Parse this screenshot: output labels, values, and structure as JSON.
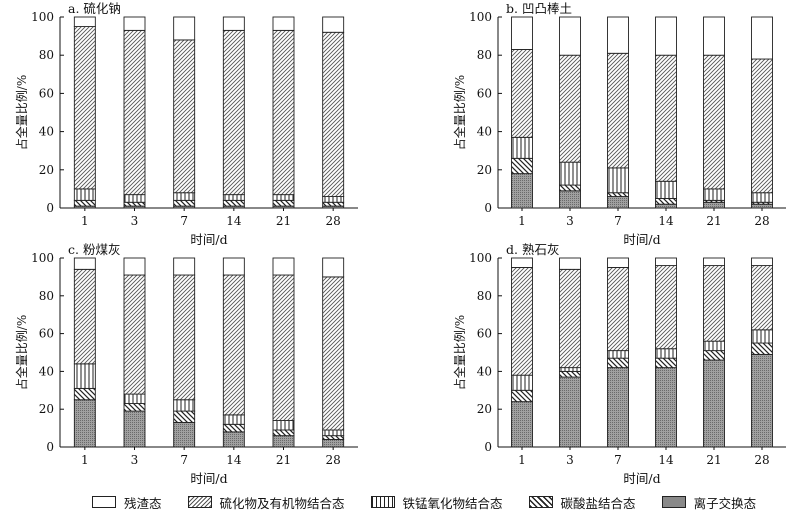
{
  "chart_data": [
    {
      "type": "bar",
      "title": "a. 硫化钠",
      "xlabel": "时间/d",
      "ylabel": "占全量比例/%",
      "ylim": [
        0,
        100
      ],
      "yticks": [
        0,
        20,
        40,
        60,
        80,
        100
      ],
      "categories": [
        "1",
        "3",
        "7",
        "14",
        "21",
        "28"
      ],
      "series": [
        {
          "name": "离子交换态",
          "values": [
            1,
            1,
            1,
            1,
            1,
            1
          ]
        },
        {
          "name": "碳酸盐结合态",
          "values": [
            3,
            2,
            3,
            3,
            3,
            2
          ]
        },
        {
          "name": "铁锰氧化物结合态",
          "values": [
            6,
            4,
            4,
            3,
            3,
            3
          ]
        },
        {
          "name": "硫化物及有机物结合态",
          "values": [
            85,
            86,
            80,
            86,
            86,
            86
          ]
        },
        {
          "name": "残渣态",
          "values": [
            5,
            7,
            12,
            7,
            7,
            8
          ]
        }
      ]
    },
    {
      "type": "bar",
      "title": "b. 凹凸棒土",
      "xlabel": "时间/d",
      "ylabel": "占全量比例/%",
      "ylim": [
        0,
        100
      ],
      "yticks": [
        0,
        20,
        40,
        60,
        80,
        100
      ],
      "categories": [
        "1",
        "3",
        "7",
        "14",
        "21",
        "28"
      ],
      "series": [
        {
          "name": "离子交换态",
          "values": [
            18,
            9,
            6,
            2,
            3,
            2
          ]
        },
        {
          "name": "碳酸盐结合态",
          "values": [
            8,
            3,
            2,
            3,
            1,
            1
          ]
        },
        {
          "name": "铁锰氧化物结合态",
          "values": [
            11,
            12,
            13,
            9,
            6,
            5
          ]
        },
        {
          "name": "硫化物及有机物结合态",
          "values": [
            46,
            56,
            60,
            66,
            70,
            70
          ]
        },
        {
          "name": "残渣态",
          "values": [
            17,
            20,
            19,
            20,
            20,
            22
          ]
        }
      ]
    },
    {
      "type": "bar",
      "title": "c. 粉煤灰",
      "xlabel": "时间/d",
      "ylabel": "占全量比例/%",
      "ylim": [
        0,
        100
      ],
      "yticks": [
        0,
        20,
        40,
        60,
        80,
        100
      ],
      "categories": [
        "1",
        "3",
        "7",
        "14",
        "21",
        "28"
      ],
      "series": [
        {
          "name": "离子交换态",
          "values": [
            25,
            19,
            13,
            8,
            6,
            4
          ]
        },
        {
          "name": "碳酸盐结合态",
          "values": [
            6,
            4,
            6,
            4,
            3,
            2
          ]
        },
        {
          "name": "铁锰氧化物结合态",
          "values": [
            13,
            5,
            6,
            5,
            5,
            3
          ]
        },
        {
          "name": "硫化物及有机物结合态",
          "values": [
            50,
            63,
            66,
            74,
            77,
            81
          ]
        },
        {
          "name": "残渣态",
          "values": [
            6,
            9,
            9,
            9,
            9,
            10
          ]
        }
      ]
    },
    {
      "type": "bar",
      "title": "d. 熟石灰",
      "xlabel": "时间/d",
      "ylabel": "占全量比例/%",
      "ylim": [
        0,
        100
      ],
      "yticks": [
        0,
        20,
        40,
        60,
        80,
        100
      ],
      "categories": [
        "1",
        "3",
        "7",
        "14",
        "21",
        "28"
      ],
      "series": [
        {
          "name": "离子交换态",
          "values": [
            24,
            37,
            42,
            42,
            46,
            49
          ]
        },
        {
          "name": "碳酸盐结合态",
          "values": [
            6,
            3,
            5,
            5,
            5,
            6
          ]
        },
        {
          "name": "铁锰氧化物结合态",
          "values": [
            8,
            2,
            4,
            5,
            5,
            7
          ]
        },
        {
          "name": "硫化物及有机物结合态",
          "values": [
            57,
            52,
            44,
            44,
            40,
            34
          ]
        },
        {
          "name": "残渣态",
          "values": [
            5,
            6,
            5,
            4,
            4,
            4
          ]
        }
      ]
    }
  ],
  "legend": [
    {
      "key": "residual",
      "label": "残渣态"
    },
    {
      "key": "sulfide",
      "label": "硫化物及有机物结合态"
    },
    {
      "key": "femn",
      "label": "铁锰氧化物结合态"
    },
    {
      "key": "carb",
      "label": "碳酸盐结合态"
    },
    {
      "key": "ion",
      "label": "离子交换态"
    }
  ]
}
